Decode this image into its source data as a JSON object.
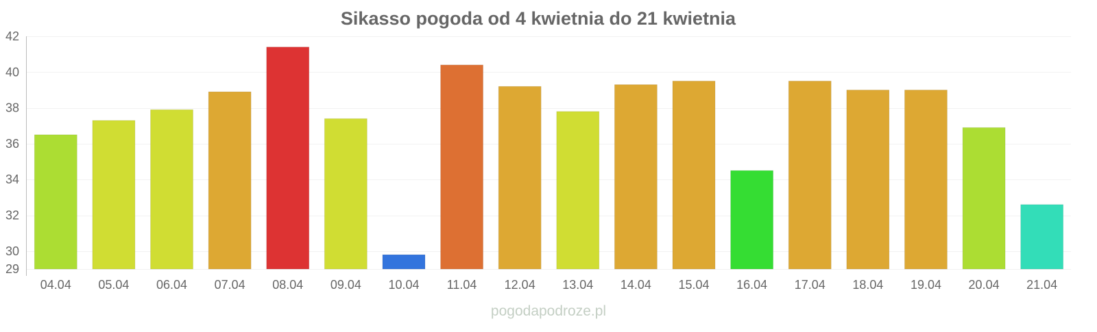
{
  "chart_data": {
    "type": "bar",
    "title": "Sikasso pogoda od 4 kwietnia do 21 kwietnia",
    "xlabel": "",
    "ylabel": "",
    "ylim": [
      29,
      42
    ],
    "yticks": [
      29,
      30,
      32,
      34,
      36,
      38,
      40,
      42
    ],
    "grid": true,
    "categories": [
      "04.04",
      "05.04",
      "06.04",
      "07.04",
      "08.04",
      "09.04",
      "10.04",
      "11.04",
      "12.04",
      "13.04",
      "14.04",
      "15.04",
      "16.04",
      "17.04",
      "18.04",
      "19.04",
      "20.04",
      "21.04"
    ],
    "values": [
      36.5,
      37.3,
      37.9,
      38.9,
      41.4,
      37.4,
      29.8,
      40.4,
      39.2,
      37.8,
      39.3,
      39.5,
      34.5,
      39.5,
      39.0,
      39.0,
      36.9,
      32.6
    ],
    "colors": [
      "#acdd33",
      "#d0dd33",
      "#d0dd33",
      "#dda833",
      "#dd3333",
      "#d0dd33",
      "#3374dd",
      "#dd7033",
      "#dda833",
      "#d0dd33",
      "#dda833",
      "#dda833",
      "#35dd33",
      "#dda833",
      "#dda833",
      "#dda833",
      "#acdd33",
      "#33ddb8"
    ]
  },
  "watermark": "pogodapodroze.pl"
}
